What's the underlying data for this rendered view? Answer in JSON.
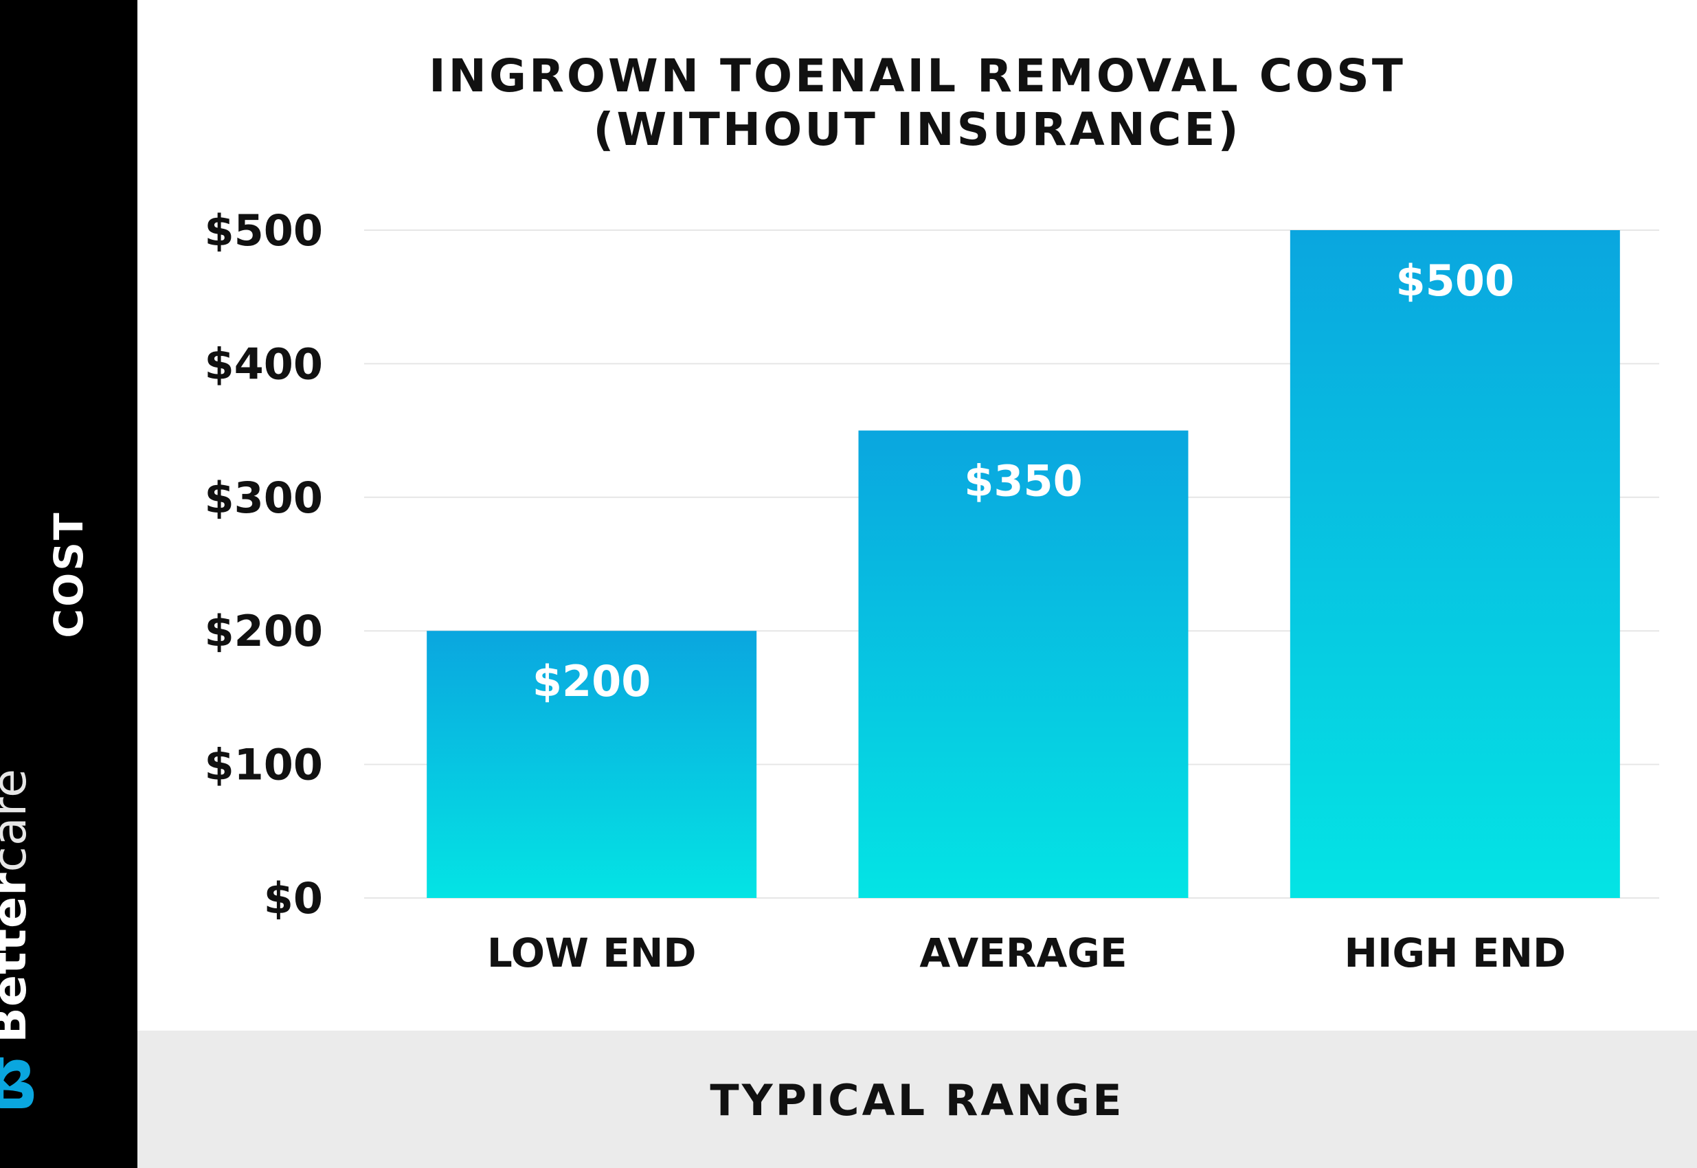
{
  "brand": {
    "name_bold": "Better",
    "name_light": "care",
    "logo_icon": "heart-b-logo-icon",
    "logo_color": "#0aa6df"
  },
  "chart_data": {
    "type": "bar",
    "title_line1": "INGROWN TOENAIL REMOVAL COST",
    "title_line2": "(WITHOUT INSURANCE)",
    "xlabel": "TYPICAL RANGE",
    "ylabel": "COST",
    "categories": [
      "LOW END",
      "AVERAGE",
      "HIGH END"
    ],
    "values": [
      200,
      350,
      500
    ],
    "data_labels": [
      "$200",
      "$350",
      "$500"
    ],
    "ylim": [
      0,
      500
    ],
    "yticks": [
      0,
      100,
      200,
      300,
      400,
      500
    ],
    "ytick_labels": [
      "$0",
      "$100",
      "$200",
      "$300",
      "$400",
      "$500"
    ],
    "grid": true,
    "legend": "none",
    "colors": {
      "bar_top": "#0aa6df",
      "bar_bottom": "#04e4e4",
      "gridline": "#e6e6e6",
      "label_text": "#111111",
      "data_label_text": "#ffffff"
    }
  }
}
